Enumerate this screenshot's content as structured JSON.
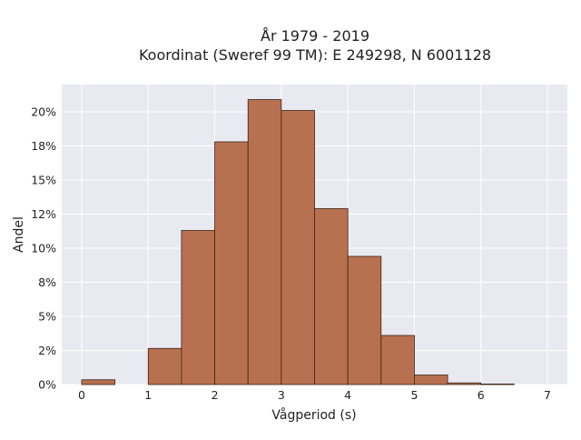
{
  "colors": {
    "plot_background": "#e9e9f1",
    "grid": "#ffffff",
    "bar_fill": "#b87150",
    "bar_stroke": "#3b2418",
    "text": "#222222"
  },
  "chart_data": {
    "type": "bar",
    "title_line1": "År 1979 - 2019",
    "title_line2": "Koordinat (Sweref 99 TM): E 249298, N 6001128",
    "xlabel": "Vågperiod (s)",
    "ylabel": "Andel",
    "xlim": [
      -0.3,
      7.3
    ],
    "ylim": [
      0,
      0.22
    ],
    "bin_width": 0.5,
    "bins": [
      {
        "start": 0.0,
        "value": 0.0035
      },
      {
        "start": 0.5,
        "value": 0.0
      },
      {
        "start": 1.0,
        "value": 0.0265
      },
      {
        "start": 1.5,
        "value": 0.113
      },
      {
        "start": 2.0,
        "value": 0.178
      },
      {
        "start": 2.5,
        "value": 0.209
      },
      {
        "start": 3.0,
        "value": 0.201
      },
      {
        "start": 3.5,
        "value": 0.129
      },
      {
        "start": 4.0,
        "value": 0.094
      },
      {
        "start": 4.5,
        "value": 0.036
      },
      {
        "start": 5.0,
        "value": 0.007
      },
      {
        "start": 5.5,
        "value": 0.0012
      },
      {
        "start": 6.0,
        "value": 0.0004
      }
    ],
    "x_ticks": [
      {
        "value": 0,
        "label": "0"
      },
      {
        "value": 1,
        "label": "1"
      },
      {
        "value": 2,
        "label": "2"
      },
      {
        "value": 3,
        "label": "3"
      },
      {
        "value": 4,
        "label": "4"
      },
      {
        "value": 5,
        "label": "5"
      },
      {
        "value": 6,
        "label": "6"
      },
      {
        "value": 7,
        "label": "7"
      }
    ],
    "y_ticks": [
      {
        "value": 0.0,
        "label": "0%"
      },
      {
        "value": 0.025,
        "label": "2%"
      },
      {
        "value": 0.05,
        "label": "5%"
      },
      {
        "value": 0.075,
        "label": "8%"
      },
      {
        "value": 0.1,
        "label": "10%"
      },
      {
        "value": 0.125,
        "label": "12%"
      },
      {
        "value": 0.15,
        "label": "15%"
      },
      {
        "value": 0.175,
        "label": "18%"
      },
      {
        "value": 0.2,
        "label": "20%"
      }
    ],
    "grid": true,
    "legend": "none"
  }
}
